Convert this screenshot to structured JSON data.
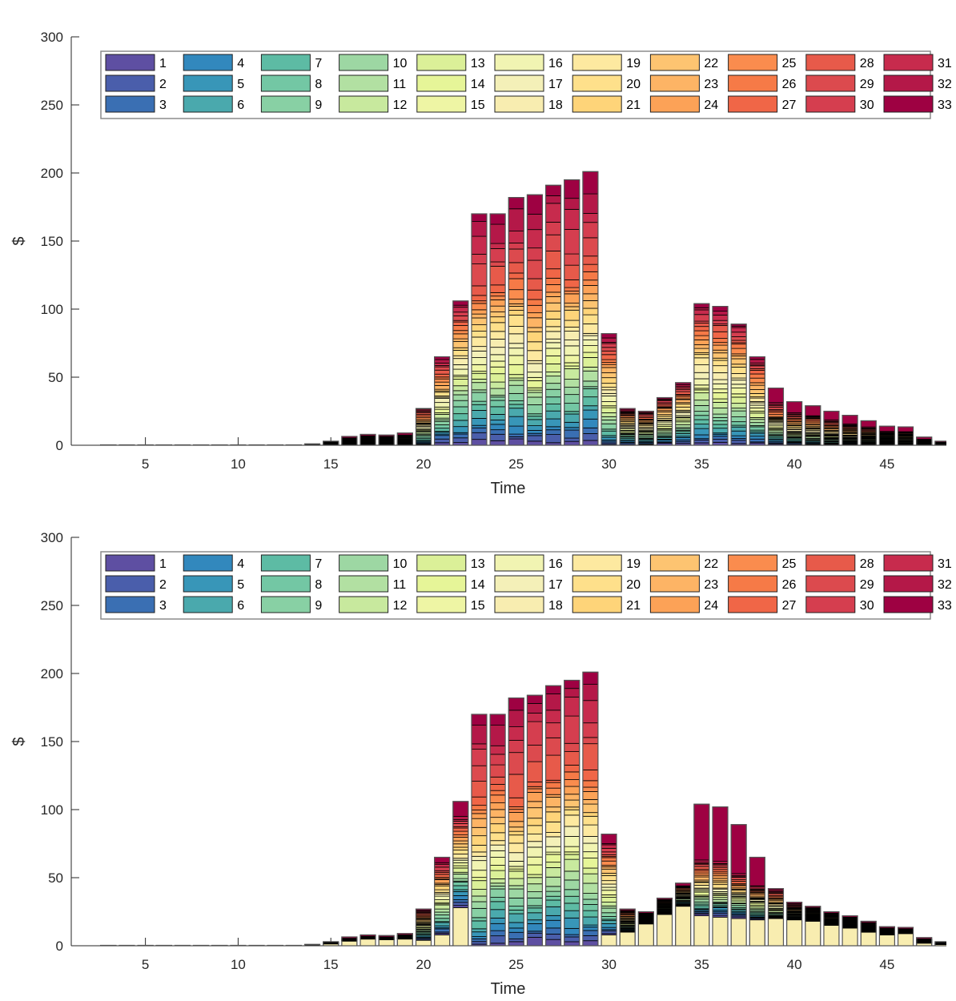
{
  "chart_data": [
    {
      "type": "bar",
      "stacked": true,
      "panel": "top",
      "title": "",
      "xlabel": "Time",
      "ylabel": "$",
      "ylim": [
        0,
        300
      ],
      "xlim": [
        1,
        48.2
      ],
      "yticks": [
        0,
        50,
        100,
        150,
        200,
        250,
        300
      ],
      "xticks": [
        5,
        10,
        15,
        20,
        25,
        30,
        35,
        40,
        45
      ],
      "legend": {
        "placement": "top",
        "columns": 11,
        "rows": 3
      },
      "stack_order": "ascending",
      "x": [
        3,
        4,
        5,
        6,
        7,
        8,
        9,
        10,
        11,
        12,
        13,
        14,
        15,
        16,
        17,
        18,
        19,
        20,
        21,
        22,
        23,
        24,
        25,
        26,
        27,
        28,
        29,
        30,
        31,
        32,
        33,
        34,
        35,
        36,
        37,
        38,
        39,
        40,
        41,
        42,
        43,
        44,
        45,
        46,
        47,
        48
      ],
      "totals": [
        0.3,
        0.3,
        0.3,
        0.3,
        0.3,
        0.3,
        0.3,
        0.3,
        0.3,
        0.3,
        0.3,
        1,
        3,
        6.5,
        8,
        7.5,
        9,
        27,
        65,
        106,
        170,
        170,
        182,
        184,
        191,
        195,
        201,
        82,
        27,
        25,
        35,
        46,
        104,
        102,
        89,
        65,
        42,
        32,
        29,
        25,
        22,
        18,
        14,
        13.5,
        6,
        3
      ]
    },
    {
      "type": "bar",
      "stacked": true,
      "panel": "bottom",
      "title": "",
      "xlabel": "Time",
      "ylabel": "$",
      "ylim": [
        0,
        300
      ],
      "xlim": [
        1,
        48.2
      ],
      "yticks": [
        0,
        50,
        100,
        150,
        200,
        250,
        300
      ],
      "xticks": [
        5,
        10,
        15,
        20,
        25,
        30,
        35,
        40,
        45
      ],
      "legend": {
        "placement": "top",
        "columns": 11,
        "rows": 3
      },
      "stack_order": "base-18-then-ascending",
      "x": [
        3,
        4,
        5,
        6,
        7,
        8,
        9,
        10,
        11,
        12,
        13,
        14,
        15,
        16,
        17,
        18,
        19,
        20,
        21,
        22,
        23,
        24,
        25,
        26,
        27,
        28,
        29,
        30,
        31,
        32,
        33,
        34,
        35,
        36,
        37,
        38,
        39,
        40,
        41,
        42,
        43,
        44,
        45,
        46,
        47,
        48
      ],
      "totals": [
        0.3,
        0.3,
        0.3,
        0.3,
        0.3,
        0.3,
        0.3,
        0.3,
        0.3,
        0.3,
        0.3,
        1,
        3,
        6.5,
        8,
        7.5,
        9,
        27,
        65,
        106,
        170,
        170,
        182,
        184,
        191,
        195,
        201,
        82,
        27,
        25,
        35,
        46,
        104,
        102,
        89,
        65,
        42,
        32,
        29,
        25,
        22,
        18,
        14,
        13.5,
        6,
        3
      ],
      "base_series_18": [
        0,
        0,
        0,
        0,
        0,
        0,
        0,
        0,
        0,
        0,
        0,
        0,
        1.5,
        3.5,
        5,
        4.5,
        5,
        4,
        8,
        28,
        0,
        0,
        0,
        0,
        0,
        0,
        0,
        8,
        10,
        16,
        23,
        29,
        22,
        21,
        20,
        19,
        20,
        19,
        18,
        15,
        13,
        10,
        8,
        9,
        2,
        1
      ],
      "top_series_33": [
        0.1,
        0.1,
        0.1,
        0.1,
        0.1,
        0.1,
        0.1,
        0.1,
        0.1,
        0.1,
        0.1,
        0.3,
        0.5,
        1,
        1,
        1,
        1,
        1,
        4,
        11,
        8,
        8,
        9,
        6,
        6,
        6,
        9,
        7,
        1,
        1,
        1,
        2,
        41,
        40,
        36,
        21,
        1,
        1,
        1,
        1,
        1,
        1,
        1,
        1,
        1,
        0.5
      ]
    }
  ],
  "series": [
    {
      "name": "1",
      "color": "#5e4fa2"
    },
    {
      "name": "2",
      "color": "#4a5eab"
    },
    {
      "name": "3",
      "color": "#3a6fb3"
    },
    {
      "name": "4",
      "color": "#3288bd"
    },
    {
      "name": "5",
      "color": "#3896b8"
    },
    {
      "name": "6",
      "color": "#4aa9ad"
    },
    {
      "name": "7",
      "color": "#5dbba4"
    },
    {
      "name": "8",
      "color": "#73c7a4"
    },
    {
      "name": "9",
      "color": "#88d0a4"
    },
    {
      "name": "10",
      "color": "#9dd7a3"
    },
    {
      "name": "11",
      "color": "#b2e0a2"
    },
    {
      "name": "12",
      "color": "#c8e99e"
    },
    {
      "name": "13",
      "color": "#dbf098"
    },
    {
      "name": "14",
      "color": "#e6f598"
    },
    {
      "name": "15",
      "color": "#eef5a4"
    },
    {
      "name": "16",
      "color": "#f1f4b2"
    },
    {
      "name": "17",
      "color": "#f4f0b8"
    },
    {
      "name": "18",
      "color": "#f8edb0"
    },
    {
      "name": "19",
      "color": "#fde9a0"
    },
    {
      "name": "20",
      "color": "#fee08b"
    },
    {
      "name": "21",
      "color": "#fed479"
    },
    {
      "name": "22",
      "color": "#fdc471"
    },
    {
      "name": "23",
      "color": "#fdb465"
    },
    {
      "name": "24",
      "color": "#fca257"
    },
    {
      "name": "25",
      "color": "#fa8c4e"
    },
    {
      "name": "26",
      "color": "#f67a47"
    },
    {
      "name": "27",
      "color": "#f06647"
    },
    {
      "name": "28",
      "color": "#e75a4a"
    },
    {
      "name": "29",
      "color": "#dc4a4e"
    },
    {
      "name": "30",
      "color": "#d53e4f"
    },
    {
      "name": "31",
      "color": "#c72b4d"
    },
    {
      "name": "32",
      "color": "#b41848"
    },
    {
      "name": "33",
      "color": "#9e0142"
    }
  ]
}
